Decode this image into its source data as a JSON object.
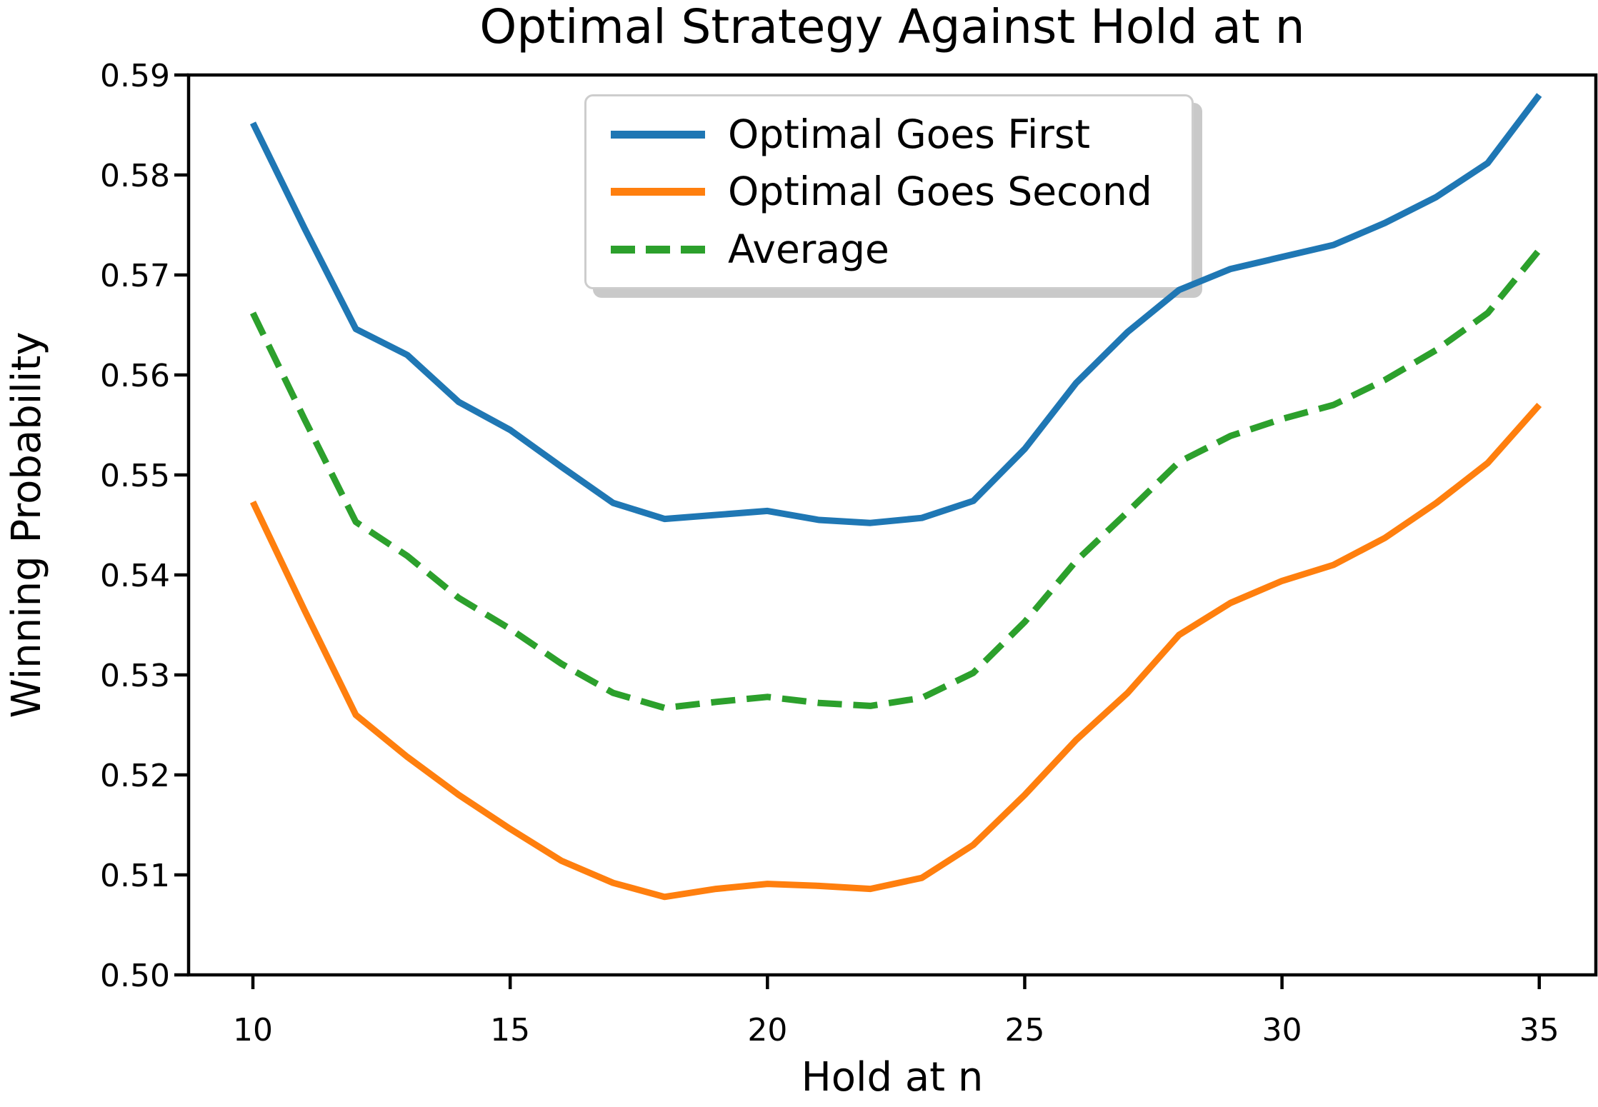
{
  "title": "Optimal Strategy Against Hold at n",
  "axes": {
    "x_label": "Hold at n",
    "y_label": "Winning Probability"
  },
  "colors": {
    "first": "#1f77b4",
    "second": "#ff7f0e",
    "average": "#2ca02c",
    "axis": "#000000",
    "legend_border": "#cdcdcd",
    "background": "#ffffff"
  },
  "chart_data": {
    "type": "line",
    "title": "Optimal Strategy Against Hold at n",
    "xlabel": "Hold at n",
    "ylabel": "Winning Probability",
    "x": [
      10,
      11,
      12,
      13,
      14,
      15,
      16,
      17,
      18,
      19,
      20,
      21,
      22,
      23,
      24,
      25,
      26,
      27,
      28,
      29,
      30,
      31,
      32,
      33,
      34,
      35
    ],
    "series": [
      {
        "name": "Optimal Goes First",
        "color": "#1f77b4",
        "dash": false,
        "values": [
          0.5852,
          0.5747,
          0.5646,
          0.562,
          0.5573,
          0.5545,
          0.5508,
          0.5472,
          0.5456,
          0.546,
          0.5464,
          0.5455,
          0.5452,
          0.5457,
          0.5474,
          0.5526,
          0.5592,
          0.5643,
          0.5685,
          0.5706,
          0.5718,
          0.573,
          0.5752,
          0.5778,
          0.5812,
          0.588
        ]
      },
      {
        "name": "Optimal Goes Second",
        "color": "#ff7f0e",
        "dash": false,
        "values": [
          0.5473,
          0.5365,
          0.526,
          0.5218,
          0.518,
          0.5146,
          0.5114,
          0.5092,
          0.5078,
          0.5086,
          0.5091,
          0.5089,
          0.5086,
          0.5097,
          0.513,
          0.518,
          0.5235,
          0.5282,
          0.534,
          0.5372,
          0.5394,
          0.541,
          0.5437,
          0.5472,
          0.5512,
          0.557
        ]
      },
      {
        "name": "Average",
        "color": "#2ca02c",
        "dash": true,
        "values": [
          0.5662,
          0.5556,
          0.5453,
          0.5419,
          0.5377,
          0.5346,
          0.5311,
          0.5282,
          0.5267,
          0.5273,
          0.5278,
          0.5272,
          0.5269,
          0.5277,
          0.5302,
          0.5353,
          0.5414,
          0.5463,
          0.5513,
          0.5539,
          0.5556,
          0.557,
          0.5595,
          0.5625,
          0.5662,
          0.5725
        ]
      }
    ],
    "xlim": [
      8.75,
      36.1
    ],
    "ylim": [
      0.5,
      0.59
    ],
    "x_ticks": [
      10,
      15,
      20,
      25,
      30,
      35
    ],
    "y_ticks": [
      "0.50",
      "0.51",
      "0.52",
      "0.53",
      "0.54",
      "0.55",
      "0.56",
      "0.57",
      "0.58",
      "0.59"
    ],
    "grid": false,
    "legend_position": "upper center inside"
  }
}
